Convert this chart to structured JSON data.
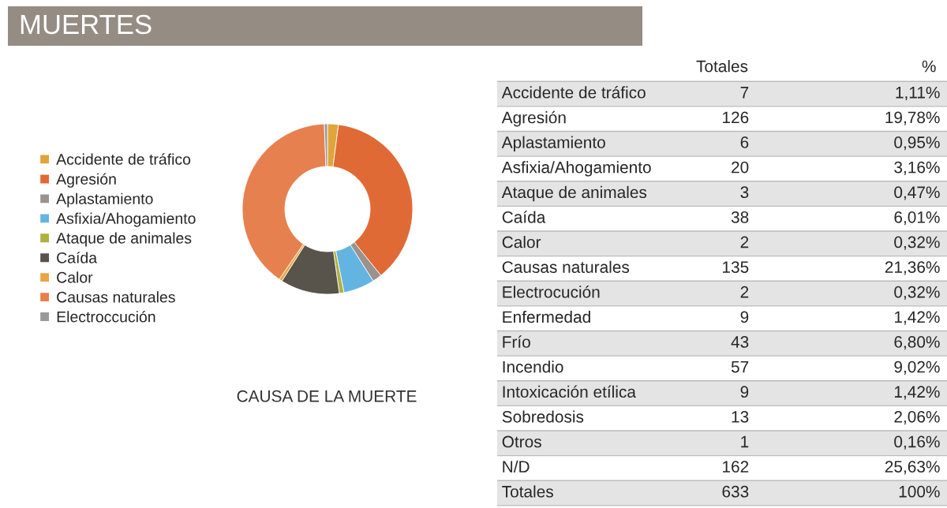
{
  "chart_data": [
    {
      "type": "donut",
      "title": "MUERTES",
      "subtitle": "CAUSA DE LA MUERTE",
      "legend": "left",
      "categories": [
        "Accidente de tráfico",
        "Agresión",
        "Aplastamiento",
        "Asfixia/Ahogamiento",
        "Ataque de animales",
        "Caída",
        "Calor",
        "Causas naturales",
        "Electroccución"
      ],
      "values": [
        2.06,
        37.17,
        1.77,
        5.9,
        0.88,
        11.21,
        0.59,
        39.83,
        0.59
      ],
      "colors": [
        "#e0a43a",
        "#e06a35",
        "#9a928c",
        "#64b4e2",
        "#b0b040",
        "#58534b",
        "#eaa640",
        "#e6804f",
        "#9a9a9a"
      ]
    },
    {
      "type": "other",
      "data_labels": true,
      "categories": [
        "Accidente de tráfico",
        "Agresión",
        "Aplastamiento",
        "Asfixia/Ahogamiento",
        "Ataque de animales",
        "Caída",
        "Calor",
        "Causas naturales",
        "Electrocución",
        "Enfermedad",
        "Frío",
        "Incendio",
        "Intoxicación etílica",
        "Sobredosis",
        "Otros",
        "N/D",
        "Totales"
      ],
      "series": [
        {
          "name": "Totales",
          "values": [
            7,
            126,
            6,
            20,
            3,
            38,
            2,
            135,
            2,
            9,
            43,
            57,
            9,
            13,
            1,
            162,
            633
          ]
        },
        {
          "name": "%",
          "values": [
            1.11,
            19.78,
            0.95,
            3.16,
            0.47,
            6.01,
            0.32,
            21.36,
            0.32,
            1.42,
            6.8,
            9.02,
            1.42,
            2.06,
            0.16,
            25.63,
            100
          ],
          "value_labels": [
            "1,11%",
            "19,78%",
            "0,95%",
            "3,16%",
            "0,47%",
            "6,01%",
            "0,32%",
            "21,36%",
            "0,32%",
            "1,42%",
            "6,80%",
            "9,02%",
            "1,42%",
            "2,06%",
            "0,16%",
            "25,63%",
            "100%"
          ]
        }
      ]
    }
  ]
}
